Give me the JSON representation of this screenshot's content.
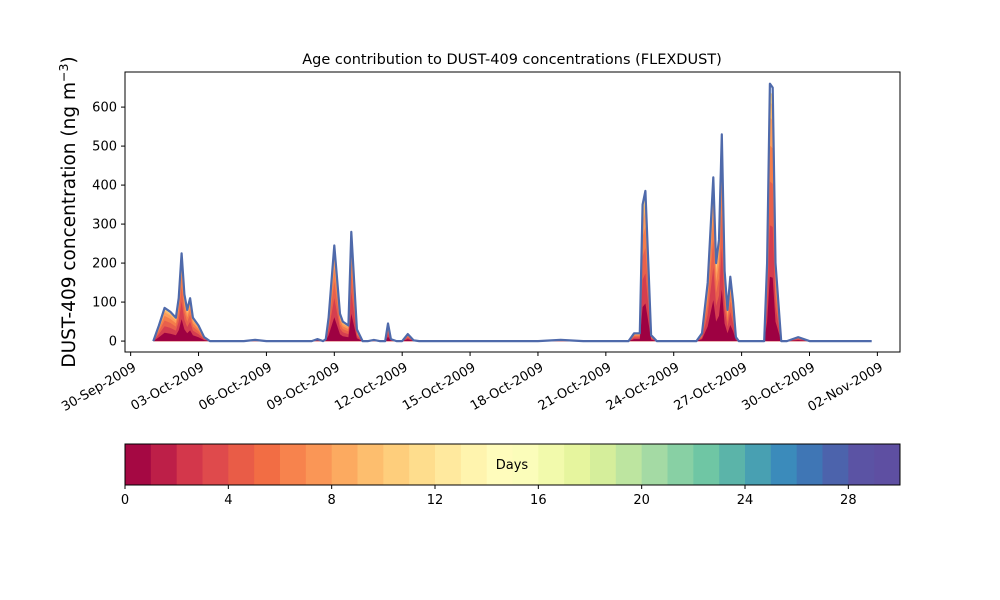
{
  "chart_data": {
    "type": "area",
    "title": "Age contribution to DUST-409 concentrations (FLEXDUST)",
    "ylabel_main": "DUST-409 concentration (ng m",
    "ylabel_sup": "−3",
    "ylabel_close": ")",
    "xlabel": "",
    "x_range": [
      "2009-09-29T18:00",
      "2009-11-03T00:00"
    ],
    "ylim": [
      -28,
      690
    ],
    "y_ticks": [
      0,
      100,
      200,
      300,
      400,
      500,
      600
    ],
    "y_tick_labels": [
      "0",
      "100",
      "200",
      "300",
      "400",
      "500",
      "600"
    ],
    "x_ticks": [
      "2009-09-30",
      "2009-10-03",
      "2009-10-06",
      "2009-10-09",
      "2009-10-12",
      "2009-10-15",
      "2009-10-18",
      "2009-10-21",
      "2009-10-24",
      "2009-10-27",
      "2009-10-30",
      "2009-11-02"
    ],
    "x_tick_labels": [
      "30-Sep-2009",
      "03-Oct-2009",
      "06-Oct-2009",
      "09-Oct-2009",
      "12-Oct-2009",
      "15-Oct-2009",
      "18-Oct-2009",
      "21-Oct-2009",
      "24-Oct-2009",
      "27-Oct-2009",
      "30-Oct-2009",
      "02-Nov-2009"
    ],
    "total_series": {
      "x": [
        "2009-10-01T00:00",
        "2009-10-01T06:00",
        "2009-10-01T12:00",
        "2009-10-01T18:00",
        "2009-10-02T00:00",
        "2009-10-02T03:00",
        "2009-10-02T06:00",
        "2009-10-02T09:00",
        "2009-10-02T12:00",
        "2009-10-02T15:00",
        "2009-10-02T18:00",
        "2009-10-03T00:00",
        "2009-10-03T06:00",
        "2009-10-03T12:00",
        "2009-10-04T00:00",
        "2009-10-05T00:00",
        "2009-10-05T12:00",
        "2009-10-06T00:00",
        "2009-10-07T00:00",
        "2009-10-07T12:00",
        "2009-10-08T00:00",
        "2009-10-08T06:00",
        "2009-10-08T12:00",
        "2009-10-08T15:00",
        "2009-10-08T18:00",
        "2009-10-09T00:00",
        "2009-10-09T06:00",
        "2009-10-09T09:00",
        "2009-10-09T12:00",
        "2009-10-09T15:00",
        "2009-10-09T18:00",
        "2009-10-10T00:00",
        "2009-10-10T06:00",
        "2009-10-10T12:00",
        "2009-10-10T18:00",
        "2009-10-11T00:00",
        "2009-10-11T06:00",
        "2009-10-11T09:00",
        "2009-10-11T12:00",
        "2009-10-11T18:00",
        "2009-10-12T00:00",
        "2009-10-12T06:00",
        "2009-10-12T12:00",
        "2009-10-12T18:00",
        "2009-10-13T06:00",
        "2009-10-15T00:00",
        "2009-10-18T00:00",
        "2009-10-19T00:00",
        "2009-10-20T00:00",
        "2009-10-21T00:00",
        "2009-10-22T00:00",
        "2009-10-22T06:00",
        "2009-10-22T12:00",
        "2009-10-22T15:00",
        "2009-10-22T18:00",
        "2009-10-22T21:00",
        "2009-10-23T00:00",
        "2009-10-23T06:00",
        "2009-10-23T12:00",
        "2009-10-24T00:00",
        "2009-10-25T00:00",
        "2009-10-25T06:00",
        "2009-10-25T12:00",
        "2009-10-25T18:00",
        "2009-10-25T21:00",
        "2009-10-26T00:00",
        "2009-10-26T03:00",
        "2009-10-26T06:00",
        "2009-10-26T09:00",
        "2009-10-26T12:00",
        "2009-10-26T15:00",
        "2009-10-26T18:00",
        "2009-10-26T21:00",
        "2009-10-27T00:00",
        "2009-10-27T06:00",
        "2009-10-27T12:00",
        "2009-10-27T18:00",
        "2009-10-28T00:00",
        "2009-10-28T03:00",
        "2009-10-28T06:00",
        "2009-10-28T09:00",
        "2009-10-28T12:00",
        "2009-10-28T18:00",
        "2009-10-29T00:00",
        "2009-10-29T06:00",
        "2009-10-29T12:00",
        "2009-10-30T00:00",
        "2009-10-31T00:00",
        "2009-11-01T00:00",
        "2009-11-01T18:00"
      ],
      "y": [
        0,
        40,
        85,
        75,
        60,
        110,
        225,
        120,
        80,
        110,
        60,
        40,
        10,
        0,
        0,
        0,
        3,
        0,
        0,
        0,
        0,
        5,
        0,
        5,
        60,
        245,
        70,
        50,
        45,
        40,
        280,
        30,
        0,
        0,
        3,
        0,
        0,
        45,
        5,
        0,
        0,
        18,
        2,
        0,
        0,
        0,
        0,
        3,
        0,
        0,
        0,
        20,
        20,
        350,
        385,
        200,
        15,
        0,
        0,
        0,
        0,
        20,
        150,
        420,
        200,
        260,
        530,
        180,
        80,
        165,
        100,
        10,
        0,
        0,
        0,
        0,
        0,
        0,
        200,
        660,
        650,
        200,
        0,
        0,
        5,
        10,
        0,
        0,
        0,
        0
      ]
    },
    "stack_fractions": [
      0.25,
      0.45,
      0.62,
      0.76,
      0.87,
      0.93,
      0.97
    ],
    "stack_colors": [
      "#9e0142",
      "#d53e4f",
      "#e8604c",
      "#f47d4b",
      "#fc9c5b",
      "#fdb768",
      "#fed080"
    ],
    "outline_color": "#4f6aab",
    "colorbar": {
      "label": "Days",
      "min": 0,
      "max": 30,
      "ticks": [
        0,
        4,
        8,
        12,
        16,
        20,
        24,
        28
      ],
      "tick_labels": [
        "0",
        "4",
        "8",
        "12",
        "16",
        "20",
        "24",
        "28"
      ],
      "colors": [
        "#a50843",
        "#bd1f48",
        "#d3374b",
        "#df4a4c",
        "#e95c47",
        "#f26d44",
        "#f7834d",
        "#fa9656",
        "#fcaa60",
        "#fdbe6e",
        "#fece7c",
        "#fedd8d",
        "#ffe99e",
        "#fff4ae",
        "#fffcbc",
        "#fbfdba",
        "#f2faac",
        "#e6f59e",
        "#d5ee9b",
        "#bde5a0",
        "#a4daa4",
        "#88d0a4",
        "#6fc6a4",
        "#5bb4a9",
        "#48a0b2",
        "#3b8bbb",
        "#3f76b5",
        "#4c63ac",
        "#5b53a4",
        "#5e4fa2"
      ]
    }
  }
}
